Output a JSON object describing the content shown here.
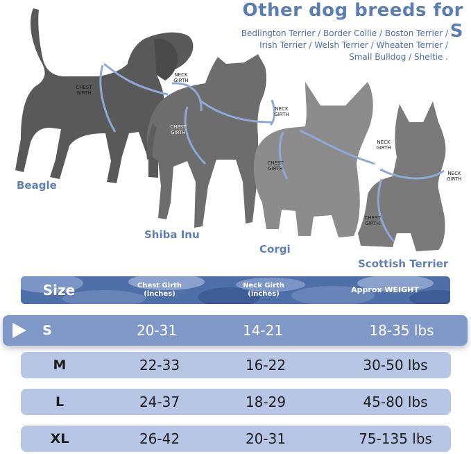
{
  "heading": {
    "title": "Other dog breeds for S",
    "breeds_line1": "Bedlington Terrier / Border Collie / Boston Terrier /",
    "breeds_line2": "Irish Terrier / Welsh Terrier / Wheaten Terrier /",
    "breeds_line3": "Small Bulldog / Sheltie ."
  },
  "dogs": [
    {
      "name": "Beagle",
      "chest_label": "CHEST GIRTH",
      "neck_label": "NECK GIRTH",
      "color": "#595959"
    },
    {
      "name": "Shiba Inu",
      "chest_label": "CHEST GIRTH",
      "neck_label": "NECK GIRTH",
      "color": "#6d6d6d"
    },
    {
      "name": "Corgi",
      "chest_label": "CHEST GIRTH",
      "neck_label": "NECK GIRTH",
      "color": "#8c8c8c"
    },
    {
      "name": "Scottish Terrier",
      "chest_label": "CHEST GIRTH",
      "neck_label": "NECK GIRTH",
      "color": "#7a7a7a"
    }
  ],
  "table": {
    "header": {
      "size": "Size",
      "chest_line1": "Chest Girth",
      "chest_line2": "(inches)",
      "neck_line1": "Neck Girth",
      "neck_line2": "(inches)",
      "weight": "Approx WEIGHT"
    },
    "rows": [
      {
        "size": "S",
        "chest": "20-31",
        "neck": "14-21",
        "weight": "18-35 lbs",
        "selected": true
      },
      {
        "size": "M",
        "chest": "22-33",
        "neck": "16-22",
        "weight": "30-50 lbs",
        "selected": false
      },
      {
        "size": "L",
        "chest": "24-37",
        "neck": "18-29",
        "weight": "45-80 lbs",
        "selected": false
      },
      {
        "size": "XL",
        "chest": "26-42",
        "neck": "20-31",
        "weight": "75-135 lbs",
        "selected": false
      }
    ]
  },
  "colors": {
    "accent": "#5a7db3",
    "row_bg": "#b8c6e6",
    "selected_row_bg": "#7f98c8",
    "girth_line": "#8fa8d8"
  }
}
